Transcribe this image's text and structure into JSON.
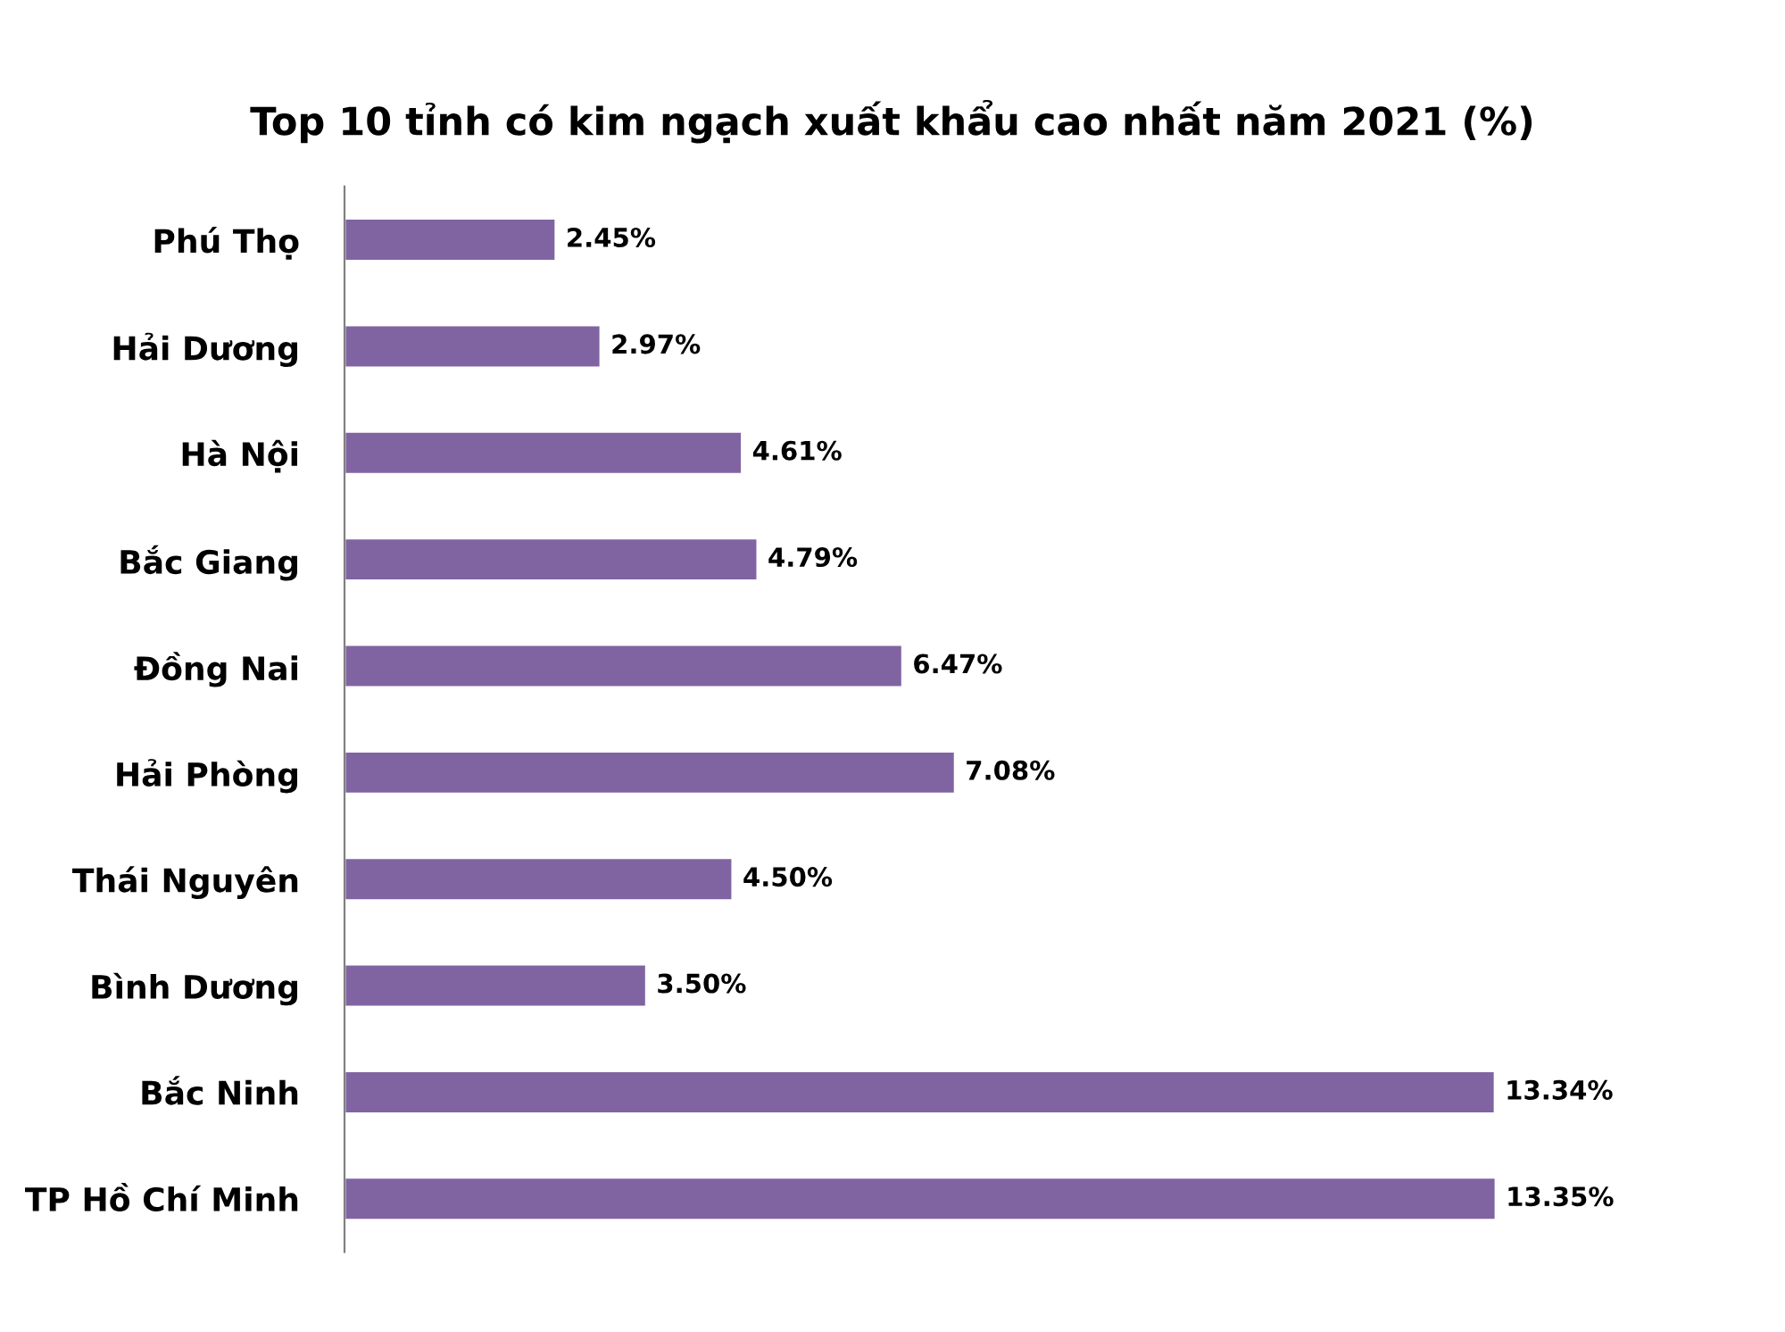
{
  "chart_data": {
    "type": "bar",
    "orientation": "horizontal",
    "title": "Top 10 tỉnh có kim ngạch xuất khẩu cao nhất năm 2021 (%)",
    "categories": [
      "Phú Thọ",
      "Hải Dương",
      "Hà Nội",
      "Bắc Giang",
      "Đồng Nai",
      "Hải Phòng",
      "Thái Nguyên",
      "Bình Dương",
      "Bắc Ninh",
      "TP Hồ Chí Minh"
    ],
    "values": [
      2.45,
      2.97,
      4.61,
      4.79,
      6.47,
      7.08,
      4.5,
      3.5,
      13.34,
      13.35
    ],
    "value_labels": [
      "2.45%",
      "2.97%",
      "4.61%",
      "4.79%",
      "6.47%",
      "7.08%",
      "4.50%",
      "3.50%",
      "13.34%",
      "13.35%"
    ],
    "color": "#8064a2"
  }
}
